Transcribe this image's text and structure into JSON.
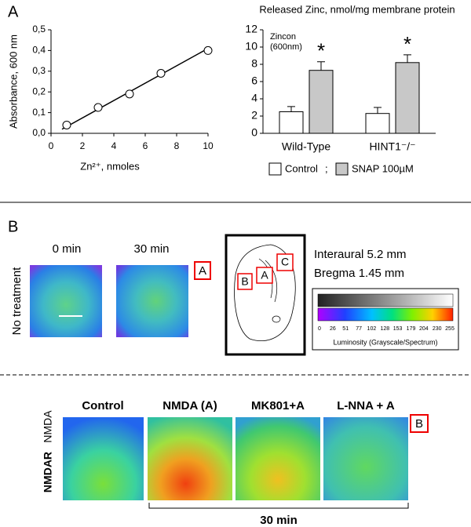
{
  "chart_data": [
    {
      "type": "scatter",
      "panel_label": "A",
      "x_label": "Zn²⁺, nmoles",
      "y_label": "Absorbance, 600 nm",
      "x": [
        1,
        3,
        5,
        7,
        10
      ],
      "values": [
        0.04,
        0.125,
        0.19,
        0.29,
        0.4
      ],
      "trend": {
        "x": [
          0.7,
          10
        ],
        "y": [
          0.02,
          0.41
        ]
      },
      "xlim": [
        0,
        10
      ],
      "xticks": [
        0,
        2,
        4,
        6,
        8,
        10
      ],
      "ylim": [
        0,
        0.5
      ],
      "yticks": [
        {
          "value": 0,
          "label": "0,0"
        },
        {
          "value": 0.1,
          "label": "0,1"
        },
        {
          "value": 0.2,
          "label": "0,2"
        },
        {
          "value": 0.3,
          "label": "0,3"
        },
        {
          "value": 0.4,
          "label": "0,4"
        },
        {
          "value": 0.5,
          "label": "0,5"
        }
      ]
    },
    {
      "type": "bar",
      "title": "Released Zinc, nmol/mg membrane protein",
      "annotation": [
        "Zincon",
        "(600nm)"
      ],
      "categories": [
        "Wild-Type",
        "HINT1⁻/⁻"
      ],
      "series": [
        {
          "name": "Control",
          "color": "#ffffff",
          "values": [
            2.5,
            2.3
          ],
          "errors": [
            0.6,
            0.7
          ]
        },
        {
          "name": "SNAP 100µM",
          "color": "#c8c8c8",
          "values": [
            7.3,
            8.2
          ],
          "errors": [
            1.0,
            0.9
          ],
          "marker": "*"
        }
      ],
      "legend_separator": ";",
      "ylim": [
        0,
        12
      ],
      "yticks": [
        0,
        2,
        4,
        6,
        8,
        10,
        12
      ]
    }
  ],
  "panel_b": {
    "label": "B",
    "times": [
      "0 min",
      "30 min"
    ],
    "row_label": "No treatment",
    "region_box": "A",
    "diagram_labels": [
      "B",
      "A",
      "C"
    ],
    "coords": [
      "Interaural 5.2 mm",
      "Bregma 1.45 mm"
    ],
    "colorbar_ticks": [
      0,
      26,
      51,
      77,
      102,
      128,
      153,
      179,
      204,
      230,
      255
    ],
    "colorbar_label": "Luminosity (Grayscale/Spectrum)",
    "conditions": [
      "Control",
      "NMDA (A)",
      "MK801+A",
      "L-NNA + A"
    ],
    "condition_box": "B",
    "side_label": [
      "NMDAR",
      "NMDA"
    ],
    "duration": "30 min"
  }
}
